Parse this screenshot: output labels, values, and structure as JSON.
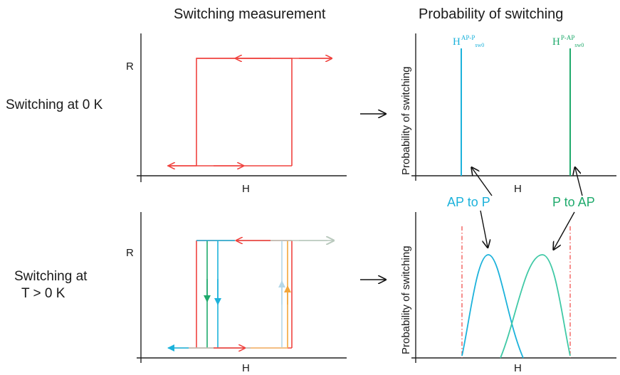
{
  "titles": {
    "left": "Switching measurement",
    "right": "Probability of switching"
  },
  "rows": {
    "zero_k": "Switching at 0 K",
    "finite_t_line1": "Switching at",
    "finite_t_line2": "T > 0 K"
  },
  "axes": {
    "resistance": "R",
    "field": "H",
    "probability": "Probability of switching"
  },
  "switching_fields": {
    "ap_to_p": {
      "base": "H",
      "sup": "AP-P",
      "sub": "sw0"
    },
    "p_to_ap": {
      "base": "H",
      "sup": "P-AP",
      "sub": "sw0"
    }
  },
  "annotations": {
    "ap_to_p": "AP to P",
    "p_to_ap": "P to AP"
  },
  "colors": {
    "red": "#f0433f",
    "cyan": "#1cb2db",
    "green": "#1faa6c",
    "teal": "#40c9a6",
    "orange": "#f3a63a",
    "pale_blue": "#b4d7e8",
    "pale_gray": "#b9c9bd",
    "axis": "#222222",
    "black": "#111111"
  }
}
